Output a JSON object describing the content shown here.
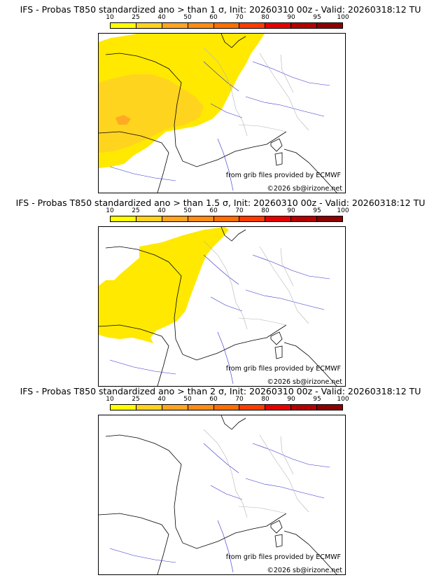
{
  "panels": [
    {
      "title": "IFS - Probas T850  standardized ano > than 1 σ, Init: 20260310 00z - Valid: 20260318:12 TU",
      "source_note": "from grib files provided by ECMWF",
      "copyright": "©2026 sb@irizone.net"
    },
    {
      "title": "IFS - Probas T850  standardized ano > than 1.5 σ, Init: 20260310 00z - Valid: 20260318:12 TU",
      "source_note": "from grib files provided by ECMWF",
      "copyright": "©2026 sb@irizone.net"
    },
    {
      "title": "IFS - Probas T850  standardized ano > than 2 σ, Init: 20260310 00z - Valid: 20260318:12 TU",
      "source_note": "from grib files provided by ECMWF",
      "copyright": "©2026 sb@irizone.net"
    }
  ],
  "legend": {
    "ticks": [
      "10",
      "25",
      "40",
      "50",
      "60",
      "70",
      "80",
      "90",
      "95",
      "100"
    ],
    "colors": [
      "#ffff00",
      "#ffd21e",
      "#ffa51e",
      "#ff8c14",
      "#ff6e00",
      "#ff3c00",
      "#e60000",
      "#b40000",
      "#8c0000"
    ]
  },
  "map_colors": {
    "prob_10_25": "#ffe900",
    "prob_25_40": "#ffd41f",
    "prob_40_50": "#ffaa22",
    "coast": "#000000",
    "rivers": "#3333cc",
    "borders": "#b4b4b4"
  }
}
